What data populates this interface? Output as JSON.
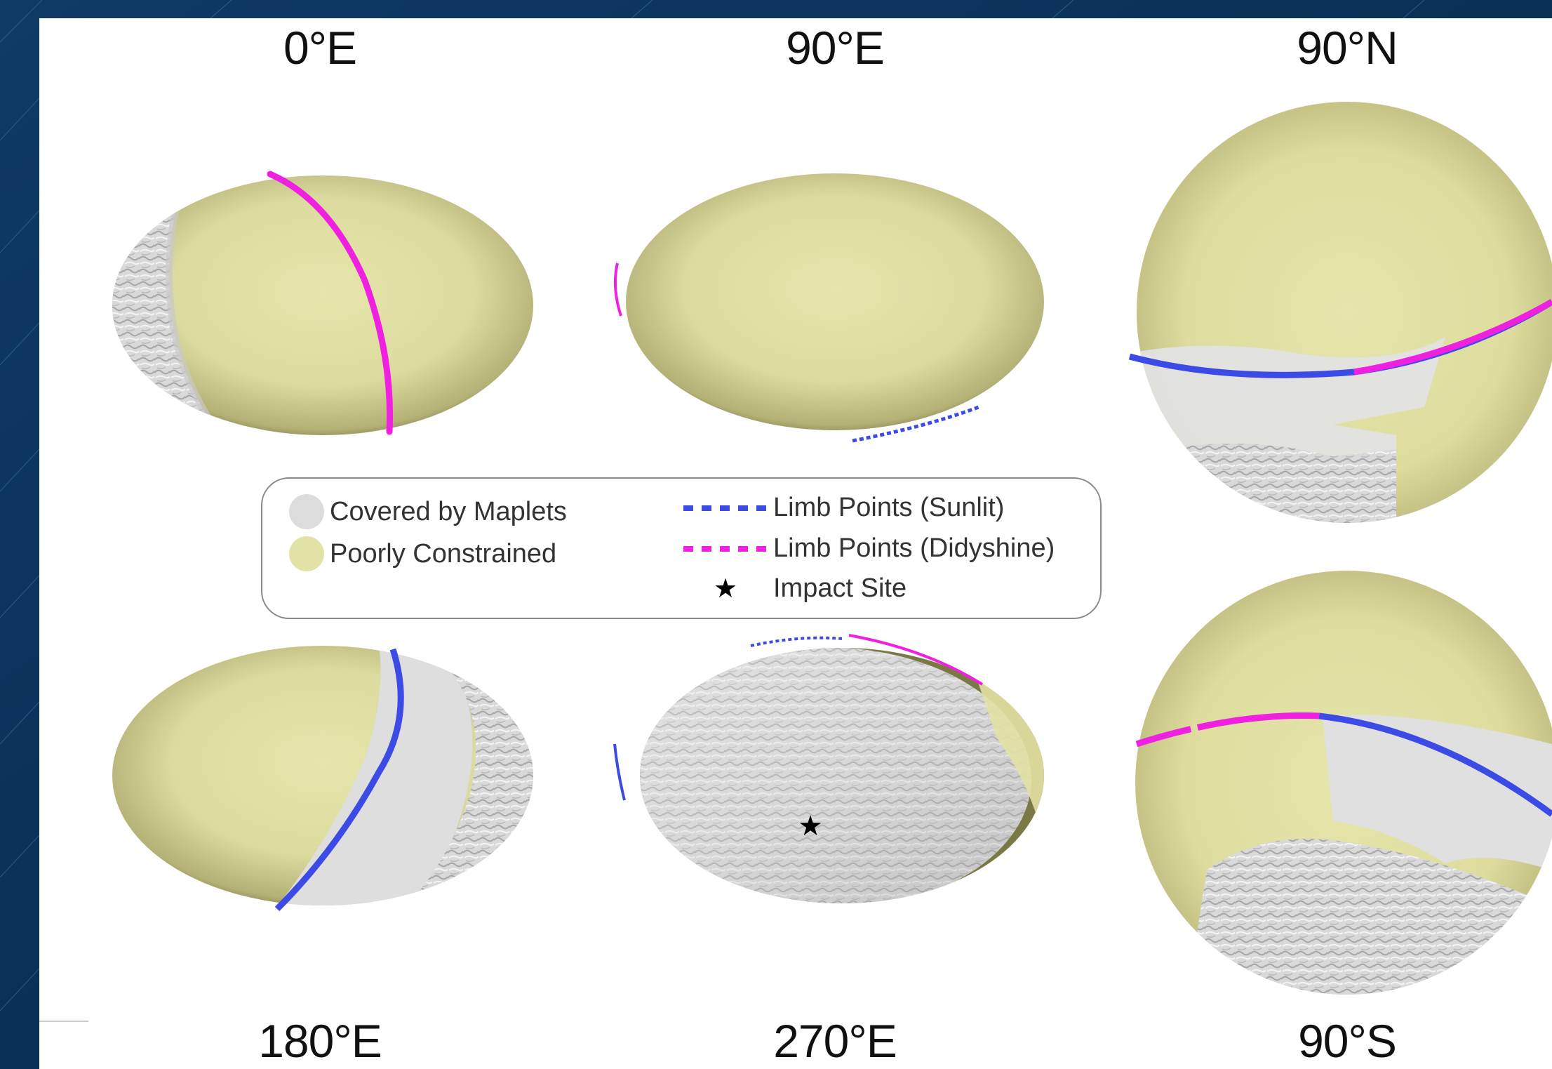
{
  "views": [
    {
      "id": "v0E",
      "label": "0°E"
    },
    {
      "id": "v90E",
      "label": "90°E"
    },
    {
      "id": "v90N",
      "label": "90°N"
    },
    {
      "id": "v180E",
      "label": "180°E"
    },
    {
      "id": "v270E",
      "label": "270°E"
    },
    {
      "id": "v90S",
      "label": "90°S"
    }
  ],
  "legend": {
    "covered": "Covered by Maplets",
    "poorly": "Poorly Constrained",
    "sunlit": "Limb Points (Sunlit)",
    "didyshine": "Limb Points (Didyshine)",
    "impact": "Impact Site"
  },
  "colors": {
    "background": "#0b2f55",
    "poorly_constrained": "#e3e2a6",
    "poorly_constrained_dark": "#6f6d3c",
    "maplets": "#dcdcdc",
    "limb_sunlit": "#3d4be6",
    "limb_didyshine": "#f020e0"
  },
  "icons": {
    "impact_marker": "star-icon"
  }
}
